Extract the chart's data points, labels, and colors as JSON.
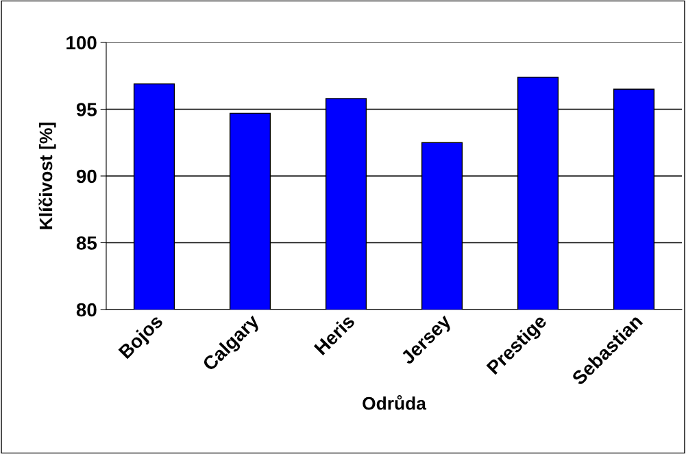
{
  "chart_data": {
    "type": "bar",
    "xlabel": "Odrůda",
    "ylabel": "Klíčivost [%]",
    "categories": [
      "Bojos",
      "Calgary",
      "Heris",
      "Jersey",
      "Prestige",
      "Sebastian"
    ],
    "values": [
      96.9,
      94.7,
      95.8,
      92.5,
      97.4,
      96.5
    ],
    "color": "#0000ff",
    "ylim": [
      80,
      100
    ],
    "yticks": [
      80,
      85,
      90,
      95,
      100
    ],
    "grid": "y",
    "legend": false
  }
}
